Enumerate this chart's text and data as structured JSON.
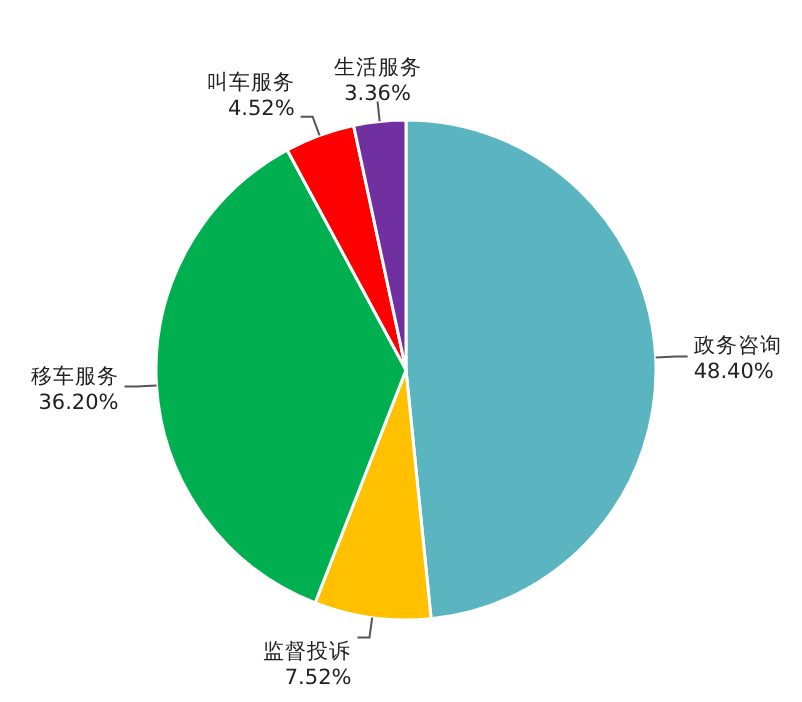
{
  "chart_data": {
    "type": "pie",
    "categories": [
      "政务咨询",
      "监督投诉",
      "移车服务",
      "叫车服务",
      "生活服务"
    ],
    "values": [
      48.4,
      7.52,
      36.2,
      4.52,
      3.36
    ],
    "value_labels": [
      "48.40%",
      "7.52%",
      "36.20%",
      "4.52%",
      "3.36%"
    ],
    "colors": [
      "#5bb5c0",
      "#ffc000",
      "#00b050",
      "#ff0000",
      "#7030a0"
    ]
  }
}
